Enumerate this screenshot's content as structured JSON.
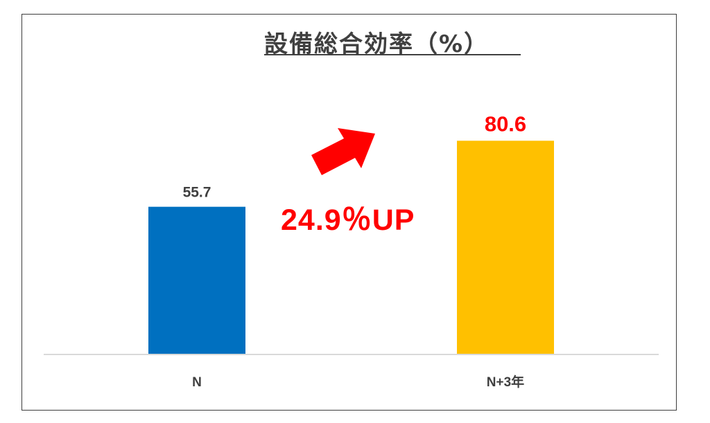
{
  "chart_data": {
    "type": "bar",
    "title": "設備総合効率（%）",
    "categories": [
      "N",
      "N+3年"
    ],
    "values": [
      55.7,
      80.6
    ],
    "data_labels": [
      "55.7",
      "80.6"
    ],
    "ylim": [
      0,
      100
    ],
    "grid": false,
    "legend": "none",
    "annotation": "24.9％UP"
  },
  "colors": {
    "bar_n": "#0070c0",
    "bar_n3": "#ffc000",
    "label_default": "#404040",
    "label_highlight": "#ff0000",
    "annotation": "#ff0000",
    "arrow": "#ff0000",
    "axis": "#d9d9d9"
  },
  "icons": {
    "arrow": "up-right-arrow-icon"
  }
}
